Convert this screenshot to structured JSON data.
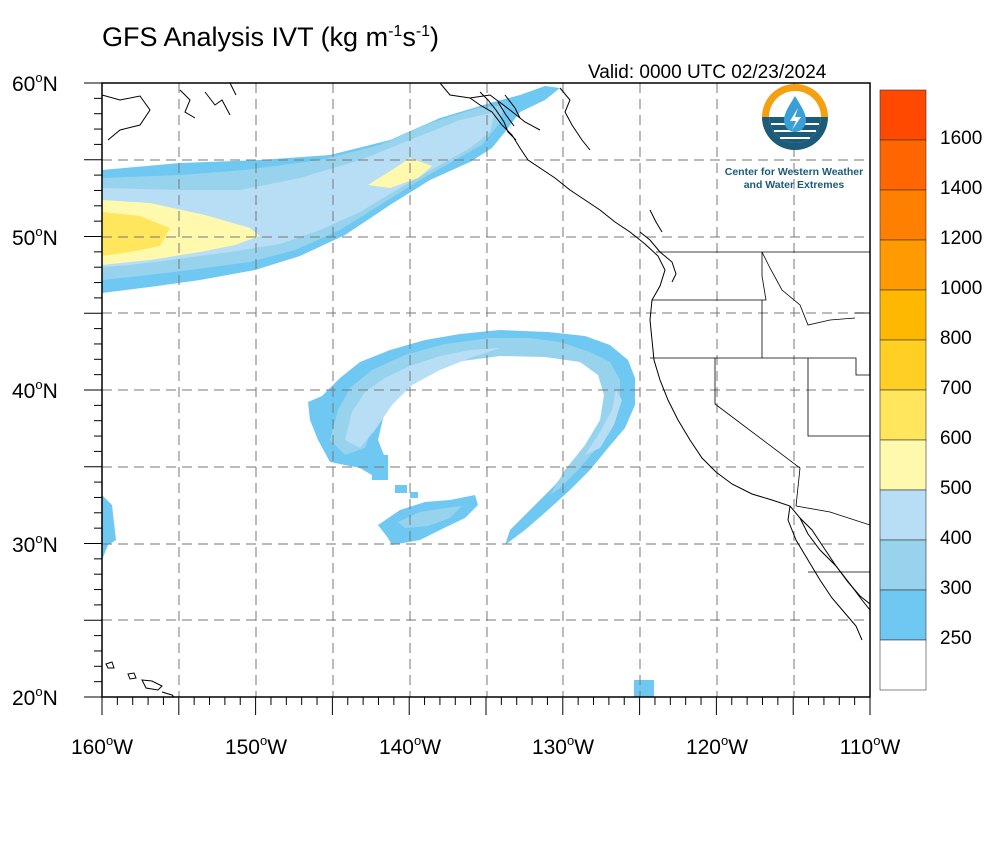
{
  "header": {
    "title_main": "GFS Analysis IVT (kg m",
    "title_exp1": "-1",
    "title_mid": "s",
    "title_exp2": "-1",
    "title_end": ")",
    "valid": "Valid: 0000 UTC 02/23/2024"
  },
  "logo": {
    "line1": "Center for Western Weather",
    "line2": "and Water Extremes"
  },
  "map": {
    "lat_labels": [
      "60",
      "50",
      "40",
      "30",
      "20"
    ],
    "lat_suffix": "N",
    "lon_labels": [
      "160",
      "150",
      "140",
      "130",
      "120",
      "110"
    ],
    "lon_suffix": "W",
    "degree": "o"
  },
  "colorbar": {
    "labels": [
      "1600",
      "1400",
      "1200",
      "1000",
      "800",
      "700",
      "600",
      "500",
      "400",
      "300",
      "250"
    ],
    "colors": [
      "#ff4800",
      "#ff6500",
      "#ff8000",
      "#ff9a00",
      "#ffb800",
      "#ffd023",
      "#ffe65c",
      "#fff9ad",
      "#b7def5",
      "#98d3ee",
      "#6ec8f2",
      "#ffffff"
    ]
  },
  "colors": {
    "ivt_250": "#6ec8f2",
    "ivt_300": "#98d3ee",
    "ivt_400": "#b7def5",
    "ivt_500": "#fff9ad",
    "ivt_600": "#ffe65c",
    "logo_orange": "#f5a00f",
    "logo_blue": "#1d5b7a"
  }
}
